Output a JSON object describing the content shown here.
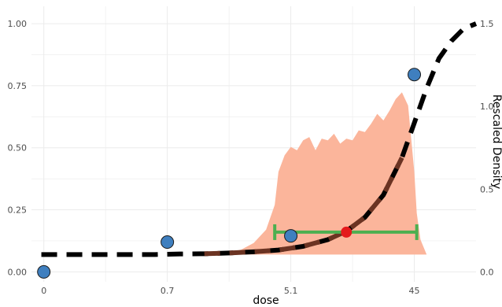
{
  "chart_data": {
    "type": "line",
    "title": "",
    "xlabel": "dose",
    "ylabel": "",
    "y2label": "Rescaled Density",
    "x_tick_labels": [
      "0",
      "0.7",
      "5.1",
      "45"
    ],
    "x_tick_positions": [
      0,
      1,
      2,
      3
    ],
    "xlim": [
      -0.1,
      3.5
    ],
    "ylim": [
      -0.04,
      1.07
    ],
    "y_ticks": [
      0.0,
      0.25,
      0.5,
      0.75,
      1.0
    ],
    "y_tick_labels": [
      "0.00",
      "0.25",
      "0.50",
      "0.75",
      "1.00"
    ],
    "y2_ticks": [
      0.0,
      0.5,
      1.0,
      1.5
    ],
    "y2_tick_labels": [
      "0.0",
      "0.5",
      "1.0",
      "1.5"
    ],
    "y2_scale": 1.5,
    "grid": true,
    "colors": {
      "curve_dashed_black": "#000000",
      "curve_dashed_brown": "#6b3322",
      "density_fill": "#fbb59b",
      "points_fill": "#3f7fbf",
      "points_stroke": "#1a1a1a",
      "interval": "#4caf50",
      "estimate": "#e41a1c",
      "grid": "#ebebeb"
    },
    "series": [
      {
        "kind": "observed-points",
        "x": [
          0,
          1,
          2,
          3
        ],
        "y": [
          0.0,
          0.12,
          0.145,
          0.795
        ]
      },
      {
        "kind": "fitted-curve",
        "x": [
          -0.02,
          0.3,
          0.6,
          0.9,
          1.1,
          1.3,
          1.5,
          1.7,
          1.9,
          2.1,
          2.3,
          2.45,
          2.6,
          2.75,
          2.9,
          3.0,
          3.1,
          3.2,
          3.3,
          3.4,
          3.5
        ],
        "y": [
          0.07,
          0.07,
          0.07,
          0.07,
          0.072,
          0.073,
          0.076,
          0.081,
          0.088,
          0.103,
          0.13,
          0.164,
          0.22,
          0.31,
          0.46,
          0.6,
          0.74,
          0.86,
          0.93,
          0.98,
          1.0
        ],
        "brown_segment_x": [
          1.2,
          2.95
        ]
      },
      {
        "kind": "density",
        "x": [
          1.2,
          1.5,
          1.6,
          1.7,
          1.8,
          1.87,
          1.9,
          1.95,
          2.0,
          2.05,
          2.1,
          2.15,
          2.2,
          2.25,
          2.3,
          2.35,
          2.4,
          2.45,
          2.5,
          2.55,
          2.6,
          2.65,
          2.7,
          2.75,
          2.8,
          2.85,
          2.9,
          2.95,
          3.0,
          3.02,
          3.05,
          3.1
        ],
        "y": [
          0.0,
          0.01,
          0.03,
          0.07,
          0.15,
          0.3,
          0.5,
          0.6,
          0.65,
          0.63,
          0.69,
          0.71,
          0.63,
          0.7,
          0.69,
          0.73,
          0.67,
          0.7,
          0.69,
          0.75,
          0.74,
          0.79,
          0.85,
          0.81,
          0.87,
          0.94,
          0.98,
          0.9,
          0.5,
          0.25,
          0.09,
          0.0
        ]
      }
    ],
    "estimate": {
      "x": 2.45,
      "y": 0.16
    },
    "interval": {
      "x_low": 1.87,
      "x_high": 3.02,
      "y": 0.16
    }
  }
}
